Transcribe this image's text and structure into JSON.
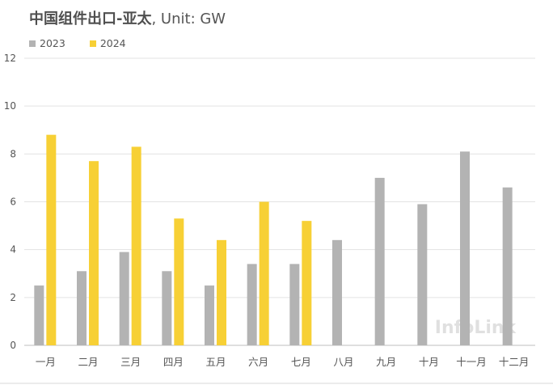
{
  "chart_data": {
    "type": "bar",
    "title": "中国组件出口-亚太",
    "subtitle": ", Unit: GW",
    "xlabel": "",
    "ylabel": "",
    "ylim": [
      0,
      12
    ],
    "yticks": [
      0,
      2,
      4,
      6,
      8,
      10,
      12
    ],
    "grid": true,
    "legend_position": "top-left",
    "categories": [
      "一月",
      "二月",
      "三月",
      "四月",
      "五月",
      "六月",
      "七月",
      "八月",
      "九月",
      "十月",
      "十一月",
      "十二月"
    ],
    "series": [
      {
        "name": "2023",
        "color": "#b3b3b3",
        "values": [
          2.5,
          3.1,
          3.9,
          3.1,
          2.5,
          3.4,
          3.4,
          4.4,
          7.0,
          5.9,
          8.1,
          6.6
        ]
      },
      {
        "name": "2024",
        "color": "#f7d035",
        "values": [
          8.8,
          7.7,
          8.3,
          5.3,
          4.4,
          6.0,
          5.2,
          null,
          null,
          null,
          null,
          null
        ]
      }
    ],
    "watermark": "InfoLink"
  }
}
